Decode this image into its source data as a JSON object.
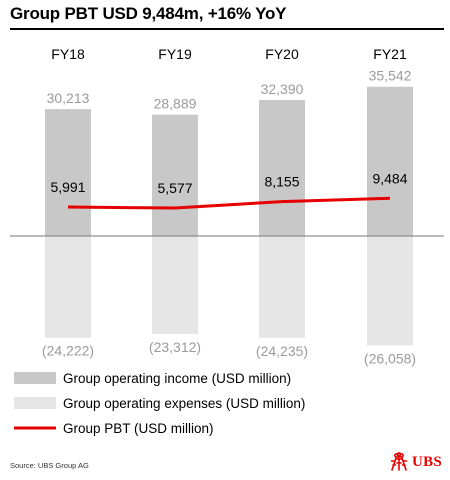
{
  "title": "Group PBT USD 9,484m, +16% YoY",
  "source": "Source: UBS Group AG",
  "brand": {
    "name": "UBS",
    "color": "#e60000"
  },
  "colors": {
    "income": "#c8c8c8",
    "expenses": "#e6e6e6",
    "pbt": "#e60000",
    "label_muted": "#9b9b9b"
  },
  "chart_data": {
    "type": "bar",
    "categories": [
      "FY18",
      "FY19",
      "FY20",
      "FY21"
    ],
    "series": [
      {
        "name": "Group operating income (USD million)",
        "type": "bar",
        "values": [
          30213,
          28889,
          32390,
          35542
        ],
        "labels": [
          "30,213",
          "28,889",
          "32,390",
          "35,542"
        ]
      },
      {
        "name": "Group operating expenses (USD million)",
        "type": "bar",
        "values": [
          -24222,
          -23312,
          -24235,
          -26058
        ],
        "labels": [
          "(24,222)",
          "(23,312)",
          "(24,235)",
          "(26,058)"
        ]
      },
      {
        "name": "Group PBT (USD million)",
        "type": "line",
        "values": [
          5991,
          5577,
          8155,
          9484
        ],
        "labels": [
          "5,991",
          "5,577",
          "8,155",
          "9,484"
        ]
      }
    ],
    "legend": "bottom",
    "grid": false
  }
}
